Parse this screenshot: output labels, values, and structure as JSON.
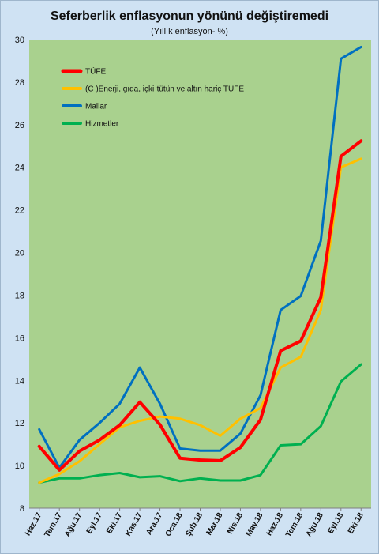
{
  "chart_data": {
    "type": "line",
    "title": "Seferberlik enflasyonun yönünü değiştiremedi",
    "subtitle": "(Yıllık enflasyon- %)",
    "xlabel": "",
    "ylabel": "",
    "ylim": [
      8,
      30
    ],
    "y_ticks": [
      8,
      10,
      12,
      14,
      16,
      18,
      20,
      22,
      24,
      26,
      28,
      30
    ],
    "grid": false,
    "legend_position": "top-left",
    "categories": [
      "Haz.17",
      "Tem.17",
      "Ağu.17",
      "Eyl.17",
      "Eki.17",
      "Kas.17",
      "Ara.17",
      "Oca.18",
      "Şub.18",
      "Mar.18",
      "Nis.18",
      "May.18",
      "Haz.18",
      "Tem.18",
      "Ağu.18",
      "Eyl.18",
      "Eki.18"
    ],
    "series": [
      {
        "name": "TÜFE",
        "color": "#ff0000",
        "width": 4,
        "values": [
          10.9,
          9.79,
          10.68,
          11.2,
          11.9,
          12.98,
          11.92,
          10.35,
          10.26,
          10.23,
          10.85,
          12.15,
          15.39,
          15.85,
          17.9,
          24.52,
          25.24
        ]
      },
      {
        "name": "(C )Enerji, gıda, içki-tütün ve altın hariç TÜFE",
        "color": "#ffc000",
        "width": 3,
        "values": [
          9.2,
          9.6,
          10.2,
          11.0,
          11.8,
          12.1,
          12.3,
          12.2,
          11.9,
          11.4,
          12.2,
          12.7,
          14.6,
          15.1,
          17.3,
          24.0,
          24.4
        ]
      },
      {
        "name": "Mallar",
        "color": "#0070c0",
        "width": 3,
        "values": [
          11.7,
          9.9,
          11.2,
          12.0,
          12.9,
          14.6,
          12.9,
          10.8,
          10.7,
          10.7,
          11.5,
          13.3,
          17.3,
          17.96,
          20.55,
          29.1,
          29.65
        ]
      },
      {
        "name": "Hizmetler",
        "color": "#00b050",
        "width": 3,
        "values": [
          9.2,
          9.4,
          9.4,
          9.55,
          9.65,
          9.45,
          9.5,
          9.27,
          9.4,
          9.3,
          9.3,
          9.55,
          10.95,
          11.0,
          11.85,
          13.95,
          14.75
        ]
      }
    ]
  }
}
